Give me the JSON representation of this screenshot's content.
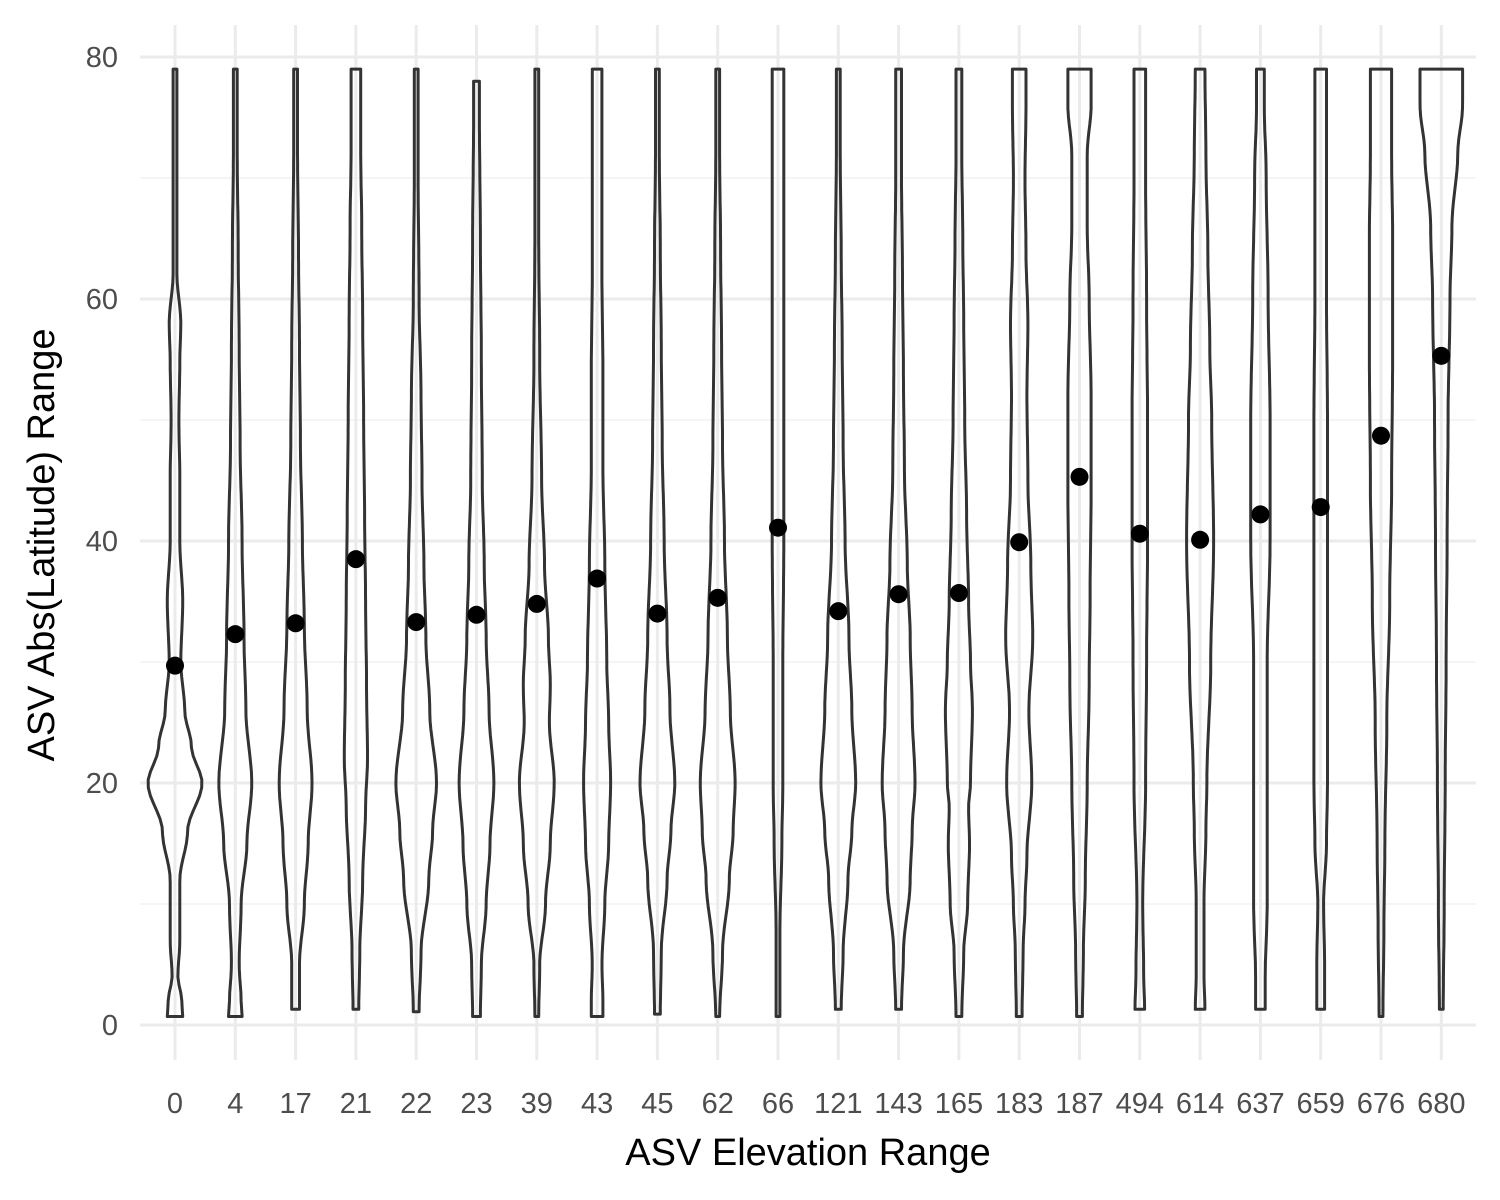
{
  "chart_data": {
    "type": "violin",
    "title": "",
    "xlabel": "ASV Elevation Range",
    "ylabel": "ASV Abs(Latitude) Range",
    "ylim": [
      -3,
      83
    ],
    "y_ticks": [
      0,
      20,
      40,
      60,
      80
    ],
    "grid": true,
    "legend": "none",
    "categories": [
      "0",
      "4",
      "17",
      "21",
      "22",
      "23",
      "39",
      "43",
      "45",
      "62",
      "66",
      "121",
      "143",
      "165",
      "183",
      "187",
      "494",
      "614",
      "637",
      "659",
      "676",
      "680"
    ],
    "means": [
      29.7,
      32.3,
      33.2,
      38.5,
      33.3,
      33.9,
      34.8,
      36.9,
      34.0,
      35.3,
      41.1,
      34.2,
      35.6,
      35.7,
      39.9,
      45.3,
      40.6,
      40.1,
      42.2,
      42.8,
      48.7,
      55.3
    ],
    "violins": [
      {
        "ymin": 0.7,
        "ymax": 79,
        "widths": [
          [
            0.7,
            8
          ],
          [
            2,
            7
          ],
          [
            4,
            3
          ],
          [
            7,
            5
          ],
          [
            12,
            5
          ],
          [
            16,
            13
          ],
          [
            20,
            28
          ],
          [
            23,
            17
          ],
          [
            26,
            10
          ],
          [
            30,
            6
          ],
          [
            35,
            8
          ],
          [
            40,
            5
          ],
          [
            45,
            5
          ],
          [
            50,
            4
          ],
          [
            55,
            5
          ],
          [
            58,
            6
          ],
          [
            62,
            2
          ],
          [
            70,
            2
          ],
          [
            79,
            2
          ]
        ]
      },
      {
        "ymin": 0.7,
        "ymax": 79,
        "widths": [
          [
            0.7,
            7
          ],
          [
            2,
            6
          ],
          [
            5,
            4
          ],
          [
            10,
            6
          ],
          [
            15,
            12
          ],
          [
            20,
            17
          ],
          [
            26,
            11
          ],
          [
            32,
            9
          ],
          [
            40,
            7
          ],
          [
            48,
            5
          ],
          [
            56,
            4
          ],
          [
            64,
            3
          ],
          [
            72,
            2
          ],
          [
            79,
            2
          ]
        ]
      },
      {
        "ymin": 1.3,
        "ymax": 79,
        "widths": [
          [
            1.3,
            4
          ],
          [
            5,
            4
          ],
          [
            10,
            9
          ],
          [
            15,
            13
          ],
          [
            20,
            17
          ],
          [
            26,
            12
          ],
          [
            33,
            9
          ],
          [
            40,
            7
          ],
          [
            48,
            5
          ],
          [
            56,
            4
          ],
          [
            64,
            3
          ],
          [
            72,
            2
          ],
          [
            79,
            2
          ]
        ]
      },
      {
        "ymin": 1.3,
        "ymax": 79,
        "widths": [
          [
            1.3,
            3
          ],
          [
            6,
            4
          ],
          [
            12,
            7
          ],
          [
            18,
            10
          ],
          [
            22,
            12
          ],
          [
            28,
            11
          ],
          [
            35,
            10
          ],
          [
            42,
            9
          ],
          [
            50,
            8
          ],
          [
            58,
            7
          ],
          [
            66,
            6
          ],
          [
            72,
            5
          ],
          [
            76,
            5
          ],
          [
            79,
            5
          ]
        ]
      },
      {
        "ymin": 1.1,
        "ymax": 79,
        "widths": [
          [
            1.1,
            3
          ],
          [
            6,
            5
          ],
          [
            12,
            13
          ],
          [
            16,
            17
          ],
          [
            20,
            21
          ],
          [
            26,
            14
          ],
          [
            32,
            10
          ],
          [
            38,
            8
          ],
          [
            45,
            6
          ],
          [
            52,
            5
          ],
          [
            60,
            3
          ],
          [
            70,
            2
          ],
          [
            79,
            2
          ]
        ]
      },
      {
        "ymin": 0.7,
        "ymax": 78,
        "widths": [
          [
            0.7,
            4
          ],
          [
            5,
            5
          ],
          [
            10,
            10
          ],
          [
            15,
            14
          ],
          [
            20,
            18
          ],
          [
            26,
            13
          ],
          [
            32,
            10
          ],
          [
            38,
            8
          ],
          [
            45,
            6
          ],
          [
            55,
            5
          ],
          [
            65,
            4
          ],
          [
            75,
            3
          ],
          [
            78,
            3
          ]
        ]
      },
      {
        "ymin": 0.7,
        "ymax": 79,
        "widths": [
          [
            0.7,
            2
          ],
          [
            5,
            3
          ],
          [
            10,
            9
          ],
          [
            15,
            14
          ],
          [
            20,
            18
          ],
          [
            25,
            13
          ],
          [
            28,
            14
          ],
          [
            32,
            12
          ],
          [
            38,
            8
          ],
          [
            45,
            5
          ],
          [
            55,
            3
          ],
          [
            65,
            2
          ],
          [
            79,
            2
          ]
        ]
      },
      {
        "ymin": 0.7,
        "ymax": 79,
        "widths": [
          [
            0.7,
            6
          ],
          [
            2,
            6
          ],
          [
            5,
            5
          ],
          [
            10,
            8
          ],
          [
            15,
            12
          ],
          [
            20,
            14
          ],
          [
            25,
            12
          ],
          [
            30,
            10
          ],
          [
            38,
            8
          ],
          [
            46,
            6
          ],
          [
            54,
            6
          ],
          [
            62,
            5
          ],
          [
            70,
            5
          ],
          [
            77,
            5
          ],
          [
            79,
            5
          ]
        ]
      },
      {
        "ymin": 0.9,
        "ymax": 79,
        "widths": [
          [
            0.9,
            3
          ],
          [
            6,
            4
          ],
          [
            12,
            10
          ],
          [
            16,
            14
          ],
          [
            20,
            18
          ],
          [
            26,
            13
          ],
          [
            32,
            10
          ],
          [
            40,
            7
          ],
          [
            48,
            5
          ],
          [
            56,
            4
          ],
          [
            64,
            3
          ],
          [
            72,
            2
          ],
          [
            79,
            2
          ]
        ]
      },
      {
        "ymin": 0.7,
        "ymax": 79,
        "widths": [
          [
            0.7,
            2
          ],
          [
            6,
            5
          ],
          [
            12,
            12
          ],
          [
            16,
            16
          ],
          [
            20,
            18
          ],
          [
            26,
            13
          ],
          [
            32,
            10
          ],
          [
            40,
            7
          ],
          [
            48,
            5
          ],
          [
            56,
            4
          ],
          [
            64,
            3
          ],
          [
            72,
            2
          ],
          [
            79,
            2
          ]
        ]
      },
      {
        "ymin": 0.7,
        "ymax": 79,
        "widths": [
          [
            0.7,
            2
          ],
          [
            8,
            2
          ],
          [
            15,
            4
          ],
          [
            20,
            5
          ],
          [
            30,
            5
          ],
          [
            40,
            6
          ],
          [
            50,
            6
          ],
          [
            60,
            6
          ],
          [
            70,
            6
          ],
          [
            76,
            6
          ],
          [
            79,
            6
          ]
        ]
      },
      {
        "ymin": 1.3,
        "ymax": 79,
        "widths": [
          [
            1.3,
            3
          ],
          [
            6,
            5
          ],
          [
            12,
            10
          ],
          [
            16,
            14
          ],
          [
            20,
            18
          ],
          [
            26,
            14
          ],
          [
            32,
            11
          ],
          [
            40,
            7
          ],
          [
            48,
            5
          ],
          [
            56,
            4
          ],
          [
            64,
            3
          ],
          [
            72,
            2
          ],
          [
            79,
            2
          ]
        ]
      },
      {
        "ymin": 1.3,
        "ymax": 79,
        "widths": [
          [
            1.3,
            3
          ],
          [
            6,
            5
          ],
          [
            12,
            12
          ],
          [
            16,
            14
          ],
          [
            20,
            17
          ],
          [
            26,
            14
          ],
          [
            32,
            12
          ],
          [
            38,
            9
          ],
          [
            46,
            6
          ],
          [
            54,
            5
          ],
          [
            62,
            4
          ],
          [
            70,
            3
          ],
          [
            79,
            3
          ]
        ]
      },
      {
        "ymin": 0.7,
        "ymax": 79,
        "widths": [
          [
            0.7,
            3
          ],
          [
            6,
            5
          ],
          [
            10,
            9
          ],
          [
            15,
            11
          ],
          [
            18,
            10
          ],
          [
            20,
            12
          ],
          [
            26,
            14
          ],
          [
            30,
            12
          ],
          [
            35,
            10
          ],
          [
            42,
            8
          ],
          [
            50,
            6
          ],
          [
            58,
            5
          ],
          [
            65,
            4
          ],
          [
            72,
            3
          ],
          [
            79,
            3
          ]
        ]
      },
      {
        "ymin": 0.7,
        "ymax": 79,
        "widths": [
          [
            0.7,
            3
          ],
          [
            6,
            4
          ],
          [
            10,
            6
          ],
          [
            14,
            8
          ],
          [
            20,
            13
          ],
          [
            26,
            10
          ],
          [
            32,
            14
          ],
          [
            38,
            12
          ],
          [
            45,
            9
          ],
          [
            52,
            8
          ],
          [
            58,
            9
          ],
          [
            64,
            7
          ],
          [
            70,
            6
          ],
          [
            76,
            7
          ],
          [
            79,
            7
          ]
        ]
      },
      {
        "ymin": 0.7,
        "ymax": 79,
        "widths": [
          [
            0.7,
            3
          ],
          [
            6,
            4
          ],
          [
            12,
            6
          ],
          [
            20,
            8
          ],
          [
            28,
            10
          ],
          [
            36,
            11
          ],
          [
            44,
            12
          ],
          [
            52,
            12
          ],
          [
            60,
            10
          ],
          [
            66,
            8
          ],
          [
            72,
            8
          ],
          [
            76,
            12
          ],
          [
            79,
            12
          ]
        ]
      },
      {
        "ymin": 1.3,
        "ymax": 79,
        "widths": [
          [
            1.3,
            5
          ],
          [
            4,
            4
          ],
          [
            10,
            3
          ],
          [
            20,
            6
          ],
          [
            30,
            7
          ],
          [
            40,
            8
          ],
          [
            50,
            8
          ],
          [
            60,
            7
          ],
          [
            70,
            6
          ],
          [
            79,
            6
          ]
        ]
      },
      {
        "ymin": 1.3,
        "ymax": 79,
        "widths": [
          [
            1.3,
            5
          ],
          [
            4,
            4
          ],
          [
            10,
            4
          ],
          [
            16,
            6
          ],
          [
            20,
            7
          ],
          [
            30,
            11
          ],
          [
            40,
            14
          ],
          [
            50,
            12
          ],
          [
            56,
            10
          ],
          [
            64,
            8
          ],
          [
            72,
            6
          ],
          [
            79,
            5
          ]
        ]
      },
      {
        "ymin": 1.3,
        "ymax": 79,
        "widths": [
          [
            1.3,
            5
          ],
          [
            4,
            5
          ],
          [
            10,
            7
          ],
          [
            20,
            7
          ],
          [
            30,
            7
          ],
          [
            40,
            10
          ],
          [
            50,
            10
          ],
          [
            60,
            8
          ],
          [
            70,
            6
          ],
          [
            76,
            4
          ],
          [
            79,
            4
          ]
        ]
      },
      {
        "ymin": 1.3,
        "ymax": 79,
        "widths": [
          [
            1.3,
            4
          ],
          [
            5,
            4
          ],
          [
            10,
            3
          ],
          [
            15,
            6
          ],
          [
            20,
            7
          ],
          [
            30,
            7
          ],
          [
            40,
            7
          ],
          [
            50,
            7
          ],
          [
            60,
            6
          ],
          [
            70,
            6
          ],
          [
            79,
            6
          ]
        ]
      },
      {
        "ymin": 0.7,
        "ymax": 79,
        "widths": [
          [
            0.7,
            2
          ],
          [
            8,
            3
          ],
          [
            15,
            4
          ],
          [
            25,
            6
          ],
          [
            35,
            9
          ],
          [
            45,
            11
          ],
          [
            55,
            12
          ],
          [
            65,
            12
          ],
          [
            72,
            11
          ],
          [
            76,
            11
          ],
          [
            79,
            11
          ]
        ]
      },
      {
        "ymin": 1.3,
        "ymax": 79,
        "widths": [
          [
            1.3,
            2
          ],
          [
            10,
            3
          ],
          [
            20,
            4
          ],
          [
            30,
            5
          ],
          [
            40,
            6
          ],
          [
            50,
            7
          ],
          [
            60,
            9
          ],
          [
            66,
            11
          ],
          [
            72,
            17
          ],
          [
            76,
            22
          ],
          [
            79,
            22
          ]
        ]
      }
    ]
  }
}
